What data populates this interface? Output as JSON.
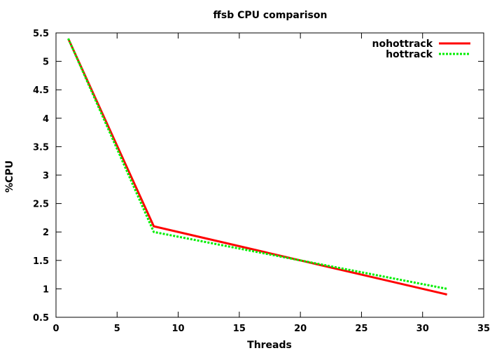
{
  "chart_data": {
    "type": "line",
    "title": "ffsb CPU comparison",
    "xlabel": "Threads",
    "ylabel": "%CPU",
    "xlim": [
      0,
      35
    ],
    "ylim": [
      0.5,
      5.5
    ],
    "xticks": [
      "0",
      "5",
      "10",
      "15",
      "20",
      "25",
      "30",
      "35"
    ],
    "yticks": [
      "0.5",
      "1",
      "1.5",
      "2",
      "2.5",
      "3",
      "3.5",
      "4",
      "4.5",
      "5",
      "5.5"
    ],
    "grid": false,
    "legend_position": "top-right",
    "series": [
      {
        "name": "nohottrack",
        "color": "#ff0000",
        "dashed": false,
        "x": [
          1,
          8,
          32
        ],
        "y": [
          5.4,
          2.1,
          0.9
        ]
      },
      {
        "name": "hottrack",
        "color": "#00ee00",
        "dashed": true,
        "x": [
          1,
          8,
          32
        ],
        "y": [
          5.4,
          2.0,
          1.0
        ]
      }
    ]
  }
}
